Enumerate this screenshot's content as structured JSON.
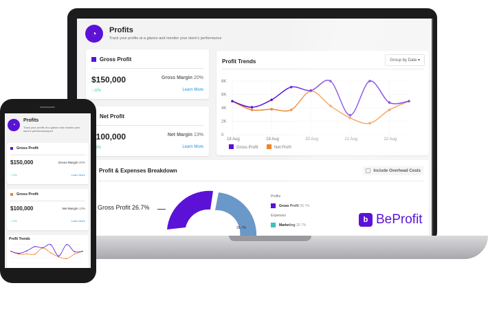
{
  "header": {
    "title": "Profits",
    "subtitle": "Track your profits at a glance and monitor your store's performance",
    "icon": "gauge-icon"
  },
  "gross": {
    "title": "Gross Profit",
    "value": "$150,000",
    "margin_label": "Gross Margin",
    "margin": "20%",
    "change": "12%",
    "link": "Learn More",
    "color": "#5b12d6"
  },
  "net": {
    "title": "Net Profit",
    "value": "$100,000",
    "margin_label": "Net Margin",
    "margin": "13%",
    "change": "12%",
    "link": "Learn More",
    "color": "#f0842c"
  },
  "trends": {
    "title": "Profit Trends",
    "group_button": "Group by Date"
  },
  "breakdown": {
    "title": "Profit & Expenses Breakdown",
    "checkbox": "Include Overhead Costs",
    "callout": "Gross Profit 26.7%",
    "slice_label": "26.7%",
    "legend_profits": "Profits",
    "legend_expenses": "Expenses",
    "items": [
      {
        "label": "Gross Profit",
        "value": "26.7%",
        "color": "#5b12d6"
      },
      {
        "label": "Marketing",
        "value": "26.7%",
        "color": "#3fbfbf"
      }
    ]
  },
  "brand": {
    "name": "BeProfit",
    "color": "#5b12d6"
  },
  "phone": {
    "title": "Profits",
    "subtitle": "Track your profits at a glance and monitor your store's performanceyour",
    "card1": {
      "title": "Gross Profit",
      "value": "$150,000",
      "margin_label": "Gross Margin",
      "margin": "20%",
      "change": "12%",
      "link": "Learn More"
    },
    "card2": {
      "title": "Gross Profit",
      "value": "$100,000",
      "margin_label": "Net Margin",
      "margin": "13%",
      "change": "12%",
      "link": "Learn More"
    },
    "trends_title": "Profit Trends"
  },
  "chart_data": {
    "type": "line",
    "x": [
      18,
      18.5,
      19,
      19.5,
      20,
      20.5,
      21,
      21.5,
      22,
      22.5
    ],
    "xticks": [
      "18 Aug",
      "19 Aug",
      "20 Aug",
      "21 Aug",
      "22 Aug"
    ],
    "yticks": [
      "0",
      "2K",
      "4K",
      "6K",
      "8K"
    ],
    "ylim": [
      0,
      8000
    ],
    "grid": true,
    "legend": "bottom-left",
    "series": [
      {
        "name": "Gross Profit",
        "color": "#5b12d6",
        "values": [
          5000,
          4100,
          5200,
          7100,
          6600,
          8000,
          2900,
          8000,
          4800,
          5000
        ]
      },
      {
        "name": "Net Profit",
        "color": "#f0842c",
        "values": [
          5000,
          3700,
          3800,
          3700,
          6500,
          4300,
          2500,
          1700,
          3700,
          5000
        ]
      }
    ]
  }
}
